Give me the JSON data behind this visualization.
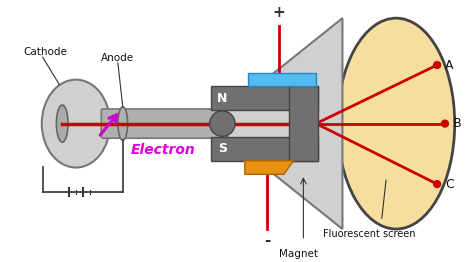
{
  "bg_color": "#ffffff",
  "tube_gray": "#b0b0b0",
  "tube_edge": "#777777",
  "tube_light": "#d0d0d0",
  "magnet_color": "#707070",
  "magnet_edge": "#444444",
  "plate_top_color": "#55bbee",
  "plate_top_edge": "#2288cc",
  "plate_bot_color": "#e89010",
  "plate_bot_edge": "#aa6600",
  "beam_color": "#cc0000",
  "arrow_color": "#cc00cc",
  "electron_color": "#dd00dd",
  "screen_fill": "#f5dea0",
  "screen_edge": "#444444",
  "wire_color": "#cc0000",
  "batt_color": "#333333",
  "label_color": "#111111",
  "N_color": "#ffffff",
  "S_color": "#ffffff",
  "cathode_label": "Cathode",
  "anode_label": "Anode",
  "electron_label": "Electron",
  "screen_label": "Fluorescent screen",
  "magnet_label": "Magnet",
  "plus_label": "+",
  "minus_label": "-"
}
